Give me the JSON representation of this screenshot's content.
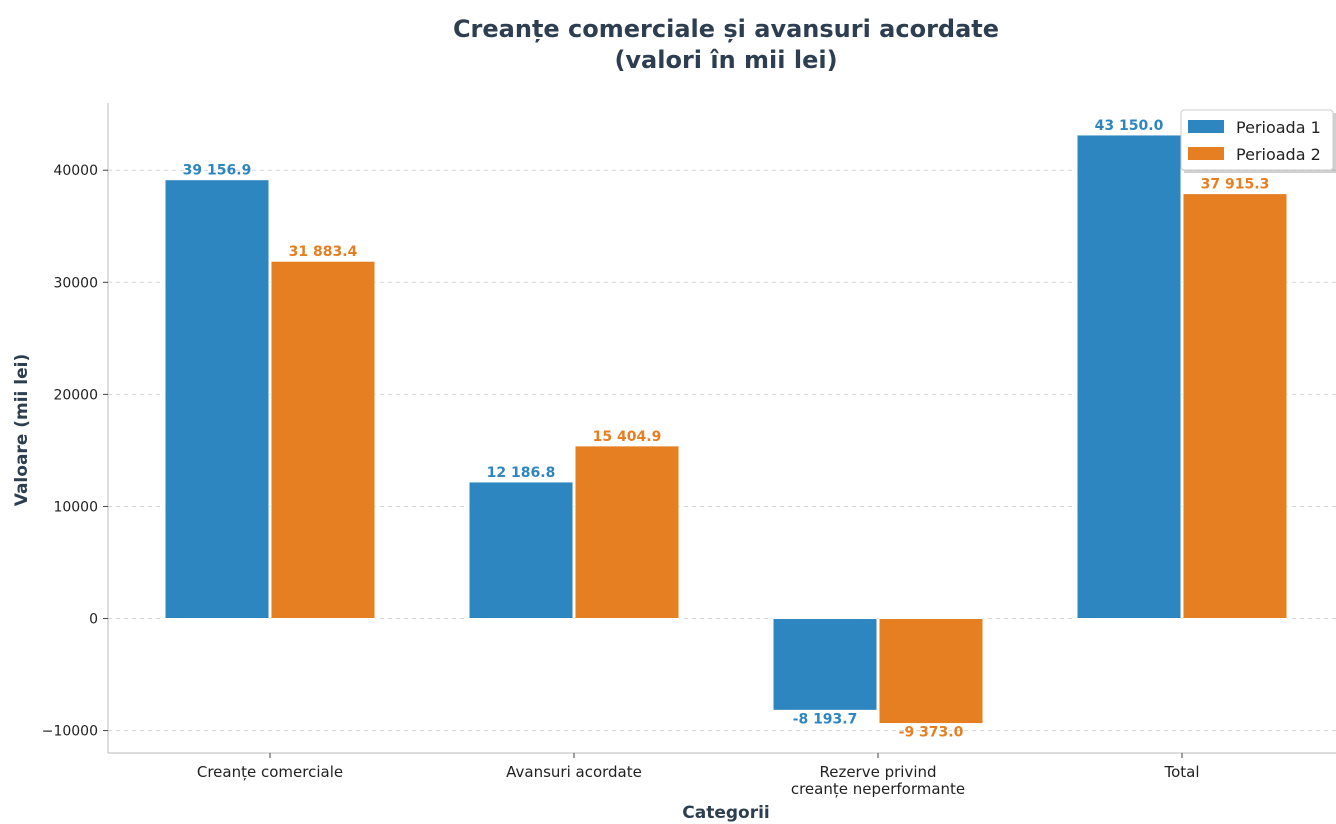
{
  "chart_data": {
    "type": "bar",
    "title": "Creanțe comerciale și avansuri acordate",
    "subtitle": "(valori în mii lei)",
    "xlabel": "Categorii",
    "ylabel": "Valoare (mii lei)",
    "categories": [
      [
        "Creanțe comerciale"
      ],
      [
        "Avansuri acordate"
      ],
      [
        "Rezerve privind",
        "creanțe neperformante"
      ],
      [
        "Total"
      ]
    ],
    "series": [
      {
        "name": "Perioada 1",
        "color": "#2e86c1",
        "values": [
          39156.9,
          12186.8,
          -8193.7,
          43150.0
        ],
        "labels": [
          "39 156.9",
          "12 186.8",
          "-8 193.7",
          "43 150.0"
        ]
      },
      {
        "name": "Perioada 2",
        "color": "#e67e22",
        "values": [
          31883.4,
          15404.9,
          -9373.0,
          37915.3
        ],
        "labels": [
          "31 883.4",
          "15 404.9",
          "-9 373.0",
          "37 915.3"
        ]
      }
    ],
    "ylim": [
      -12000,
      46000
    ],
    "yticks": [
      -10000,
      0,
      10000,
      20000,
      30000,
      40000
    ],
    "ytick_labels": [
      "−10000",
      "0",
      "10000",
      "20000",
      "30000",
      "40000"
    ],
    "grid": true,
    "legend_position": "top-right"
  }
}
